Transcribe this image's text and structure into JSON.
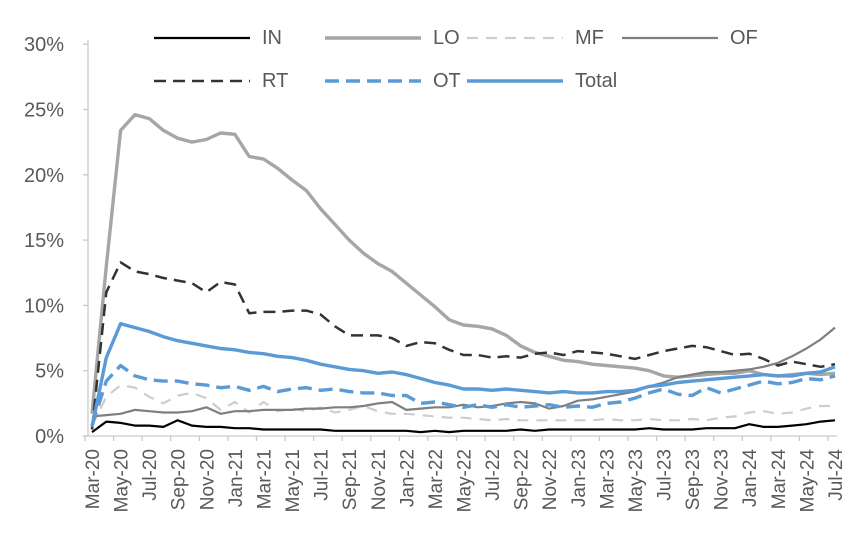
{
  "chart_data": {
    "type": "line",
    "title": "",
    "xlabel": "",
    "ylabel": "",
    "ylim": [
      0,
      30
    ],
    "grid": false,
    "legend_position": "top-inside-two-rows",
    "y_tick_labels": [
      "0%",
      "5%",
      "10%",
      "15%",
      "20%",
      "25%",
      "30%"
    ],
    "x_tick_every": 2,
    "categories": [
      "Mar-20",
      "Apr-20",
      "May-20",
      "Jun-20",
      "Jul-20",
      "Aug-20",
      "Sep-20",
      "Oct-20",
      "Nov-20",
      "Dec-20",
      "Jan-21",
      "Feb-21",
      "Mar-21",
      "Apr-21",
      "May-21",
      "Jun-21",
      "Jul-21",
      "Aug-21",
      "Sep-21",
      "Oct-21",
      "Nov-21",
      "Dec-21",
      "Jan-22",
      "Feb-22",
      "Mar-22",
      "Apr-22",
      "May-22",
      "Jun-22",
      "Jul-22",
      "Aug-22",
      "Sep-22",
      "Oct-22",
      "Nov-22",
      "Dec-22",
      "Jan-23",
      "Feb-23",
      "Mar-23",
      "Apr-23",
      "May-23",
      "Jun-23",
      "Jul-23",
      "Aug-23",
      "Sep-23",
      "Oct-23",
      "Nov-23",
      "Dec-23",
      "Jan-24",
      "Feb-24",
      "Mar-24",
      "Apr-24",
      "May-24",
      "Jun-24",
      "Jul-24"
    ],
    "series": [
      {
        "name": "IN",
        "color": "#000000",
        "dash": "",
        "width": 2.2,
        "values": [
          0.3,
          1.1,
          1.0,
          0.8,
          0.8,
          0.7,
          1.2,
          0.8,
          0.7,
          0.7,
          0.6,
          0.6,
          0.5,
          0.5,
          0.5,
          0.5,
          0.5,
          0.4,
          0.4,
          0.4,
          0.4,
          0.4,
          0.4,
          0.3,
          0.4,
          0.3,
          0.4,
          0.4,
          0.4,
          0.4,
          0.5,
          0.4,
          0.5,
          0.5,
          0.5,
          0.5,
          0.5,
          0.5,
          0.5,
          0.6,
          0.5,
          0.5,
          0.5,
          0.6,
          0.6,
          0.6,
          0.9,
          0.7,
          0.7,
          0.8,
          0.9,
          1.1,
          1.2
        ]
      },
      {
        "name": "LO",
        "color": "#a6a6a6",
        "dash": "",
        "width": 3.4,
        "values": [
          1.7,
          13.0,
          23.4,
          24.6,
          24.3,
          23.4,
          22.8,
          22.5,
          22.7,
          23.2,
          23.1,
          21.4,
          21.2,
          20.5,
          19.6,
          18.8,
          17.4,
          16.2,
          15.0,
          14.0,
          13.2,
          12.6,
          11.7,
          10.8,
          9.9,
          8.9,
          8.5,
          8.4,
          8.2,
          7.7,
          6.9,
          6.4,
          6.1,
          5.8,
          5.7,
          5.5,
          5.4,
          5.3,
          5.2,
          5.0,
          4.6,
          4.5,
          4.6,
          4.7,
          4.8,
          4.8,
          5.0,
          4.7,
          4.6,
          4.7,
          4.8,
          4.7,
          4.8
        ]
      },
      {
        "name": "MF",
        "color": "#cdcdcd",
        "dash": "11 8",
        "width": 2.2,
        "values": [
          0.8,
          3.0,
          3.9,
          3.7,
          3.0,
          2.5,
          3.1,
          3.3,
          2.9,
          2.0,
          2.6,
          1.8,
          2.6,
          1.9,
          2.1,
          1.9,
          2.2,
          1.8,
          2.0,
          2.3,
          1.9,
          1.7,
          1.7,
          1.6,
          1.5,
          1.4,
          1.4,
          1.3,
          1.2,
          1.3,
          1.2,
          1.2,
          1.2,
          1.2,
          1.2,
          1.2,
          1.3,
          1.2,
          1.2,
          1.3,
          1.2,
          1.2,
          1.3,
          1.2,
          1.4,
          1.5,
          1.8,
          1.9,
          1.7,
          1.8,
          2.1,
          2.3,
          2.3
        ]
      },
      {
        "name": "OF",
        "color": "#7f7f7f",
        "dash": "",
        "width": 2.2,
        "values": [
          1.5,
          1.6,
          1.7,
          2.0,
          1.9,
          1.8,
          1.8,
          1.9,
          2.2,
          1.7,
          1.9,
          1.9,
          2.0,
          2.0,
          2.0,
          2.1,
          2.1,
          2.2,
          2.2,
          2.3,
          2.5,
          2.6,
          2.0,
          2.1,
          2.2,
          2.2,
          2.4,
          2.2,
          2.3,
          2.5,
          2.6,
          2.5,
          2.1,
          2.3,
          2.7,
          2.8,
          3.0,
          3.2,
          3.4,
          3.8,
          4.1,
          4.5,
          4.7,
          4.9,
          4.9,
          5.0,
          5.1,
          5.3,
          5.6,
          6.1,
          6.7,
          7.4,
          8.3
        ]
      },
      {
        "name": "RT",
        "color": "#333333",
        "dash": "12 7",
        "width": 2.5,
        "values": [
          0.5,
          11.0,
          13.3,
          12.6,
          12.4,
          12.1,
          11.9,
          11.7,
          11.0,
          11.8,
          11.6,
          9.4,
          9.5,
          9.5,
          9.6,
          9.6,
          9.3,
          8.4,
          7.7,
          7.7,
          7.7,
          7.5,
          6.9,
          7.2,
          7.1,
          6.6,
          6.2,
          6.2,
          6.0,
          6.1,
          6.0,
          6.3,
          6.4,
          6.2,
          6.5,
          6.4,
          6.3,
          6.1,
          5.9,
          6.2,
          6.5,
          6.7,
          6.9,
          6.8,
          6.5,
          6.2,
          6.3,
          5.9,
          5.4,
          5.7,
          5.5,
          5.3,
          5.5
        ]
      },
      {
        "name": "OT",
        "color": "#5b9bd5",
        "dash": "14 7",
        "width": 3.4,
        "values": [
          0.8,
          4.2,
          5.4,
          4.6,
          4.3,
          4.2,
          4.2,
          4.0,
          3.9,
          3.7,
          3.8,
          3.5,
          3.8,
          3.4,
          3.6,
          3.7,
          3.5,
          3.6,
          3.4,
          3.3,
          3.3,
          3.1,
          3.1,
          2.5,
          2.6,
          2.4,
          2.2,
          2.4,
          2.2,
          2.4,
          2.2,
          2.3,
          2.4,
          2.2,
          2.3,
          2.2,
          2.5,
          2.6,
          2.9,
          3.3,
          3.6,
          3.2,
          3.1,
          3.7,
          3.3,
          3.6,
          3.9,
          4.2,
          4.0,
          4.1,
          4.4,
          4.3,
          4.6
        ]
      },
      {
        "name": "Total",
        "color": "#5b9bd5",
        "dash": "",
        "width": 3.4,
        "values": [
          0.7,
          6.0,
          8.6,
          8.3,
          8.0,
          7.6,
          7.3,
          7.1,
          6.9,
          6.7,
          6.6,
          6.4,
          6.3,
          6.1,
          6.0,
          5.8,
          5.5,
          5.3,
          5.1,
          5.0,
          4.8,
          4.9,
          4.7,
          4.4,
          4.1,
          3.9,
          3.6,
          3.6,
          3.5,
          3.6,
          3.5,
          3.4,
          3.3,
          3.4,
          3.3,
          3.3,
          3.4,
          3.4,
          3.5,
          3.8,
          3.9,
          4.1,
          4.2,
          4.3,
          4.4,
          4.5,
          4.6,
          4.7,
          4.6,
          4.6,
          4.8,
          4.9,
          5.3
        ]
      }
    ],
    "legend_order": [
      "IN",
      "LO",
      "MF",
      "OF",
      "RT",
      "OT",
      "Total"
    ],
    "draw_order": [
      "LO",
      "MF",
      "RT",
      "OF",
      "IN",
      "OT",
      "Total"
    ],
    "colors": {
      "axis": "#c9c9c9",
      "text": "#595959",
      "background": "#ffffff"
    }
  }
}
